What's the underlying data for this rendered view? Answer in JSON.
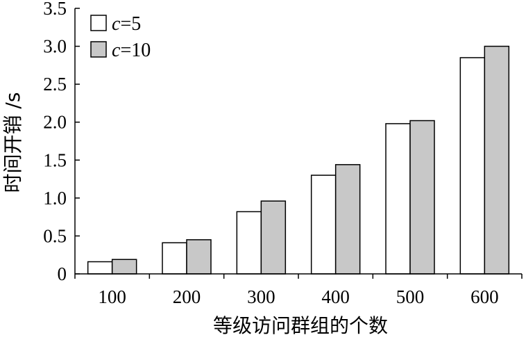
{
  "chart_data": {
    "type": "bar",
    "xlabel": "等级访问群组的个数",
    "ylabel": "时间开销 /s",
    "categories": [
      "100",
      "200",
      "300",
      "400",
      "500",
      "600"
    ],
    "series": [
      {
        "name_var": "c",
        "name_val": "=5",
        "values": [
          0.16,
          0.41,
          0.82,
          1.3,
          1.98,
          2.85
        ],
        "color": "#ffffff"
      },
      {
        "name_var": "c",
        "name_val": "=10",
        "values": [
          0.19,
          0.45,
          0.96,
          1.44,
          2.02,
          3.0
        ],
        "color": "#c8c8c8"
      }
    ],
    "ylim": [
      0,
      3.5
    ],
    "yticks": [
      "0",
      "0.5",
      "1.0",
      "1.5",
      "2.0",
      "2.5",
      "3.0",
      "3.5"
    ],
    "grid": false,
    "legend": "top-left"
  }
}
